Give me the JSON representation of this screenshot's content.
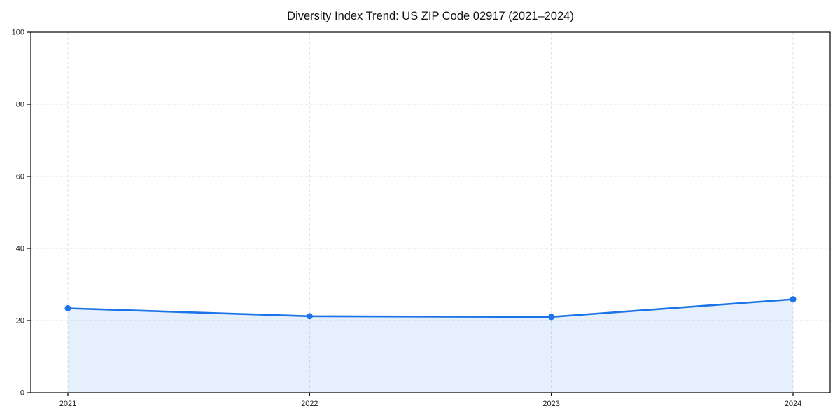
{
  "figure": {
    "background_color": "#ffffff"
  },
  "chart_data": {
    "type": "line",
    "title": "Diversity Index Trend: US ZIP Code 02917 (2021–2024)",
    "xlabel": "",
    "ylabel": "",
    "categories": [
      "2021",
      "2022",
      "2023",
      "2024"
    ],
    "series": [
      {
        "name": "Diversity Index",
        "values": [
          23.4,
          21.2,
          21.0,
          25.9
        ]
      }
    ],
    "ylim": [
      0,
      100
    ],
    "yticks": [
      0,
      20,
      40,
      60,
      80,
      100
    ],
    "ytick_labels": [
      "0",
      "20",
      "40",
      "60",
      "80",
      "100"
    ],
    "grid": true,
    "grid_style": "dashed",
    "legend": false,
    "line_color": "#1a73e8",
    "marker_color": "#1a73e8",
    "area_fill_color": "rgba(26,115,232,0.11)",
    "grid_color": "#e0e0e0",
    "spine_color": "#000000",
    "marker": "circle"
  }
}
